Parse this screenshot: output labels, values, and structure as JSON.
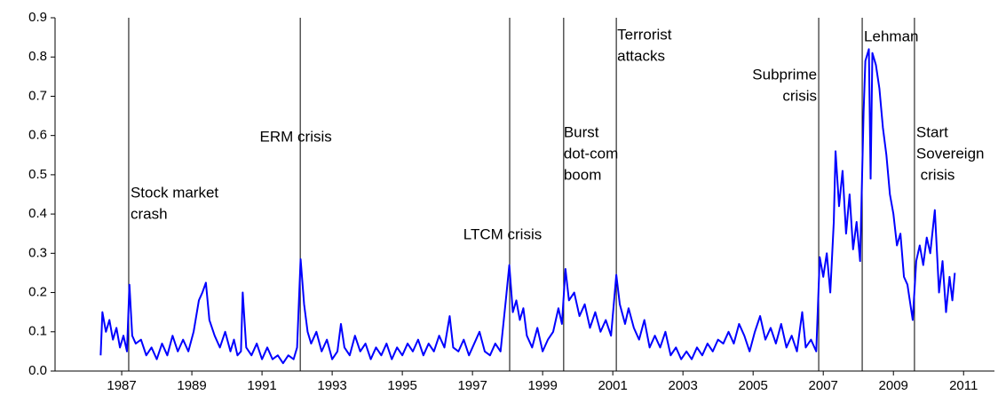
{
  "chart_data": {
    "type": "line",
    "color": "#0000ff",
    "event_color": "#000000",
    "xlim": [
      1985.7,
      2012.48
    ],
    "ylim": [
      0,
      0.9
    ],
    "xticks": [
      {
        "value": 1987.6,
        "label": "1987"
      },
      {
        "value": 1989.6,
        "label": "1989"
      },
      {
        "value": 1991.6,
        "label": "1991"
      },
      {
        "value": 1993.6,
        "label": "1993"
      },
      {
        "value": 1995.6,
        "label": "1995"
      },
      {
        "value": 1997.6,
        "label": "1997"
      },
      {
        "value": 1999.6,
        "label": "1999"
      },
      {
        "value": 2001.6,
        "label": "2001"
      },
      {
        "value": 2003.6,
        "label": "2003"
      },
      {
        "value": 2005.6,
        "label": "2005"
      },
      {
        "value": 2007.6,
        "label": "2007"
      },
      {
        "value": 2009.6,
        "label": "2009"
      },
      {
        "value": 2011.6,
        "label": "2011"
      }
    ],
    "yticks": [
      {
        "value": 0,
        "label": "0.0"
      },
      0.1,
      0.2,
      0.3,
      0.4,
      0.5,
      0.6,
      0.7,
      0.8,
      0.9
    ],
    "events": [
      {
        "x": 1987.8,
        "label": [
          "Stock market",
          "crash"
        ]
      },
      {
        "x": 1992.69,
        "label": [
          "ERM crisis"
        ]
      },
      {
        "x": 1998.66,
        "label": [
          "LTCM crisis"
        ]
      },
      {
        "x": 2000.2,
        "label": [
          "Burst",
          "dot-com",
          "boom"
        ]
      },
      {
        "x": 2001.7,
        "label": [
          "Terrorist",
          "attacks"
        ]
      },
      {
        "x": 2007.47,
        "label": [
          "Subprime",
          "crisis"
        ]
      },
      {
        "x": 2008.71,
        "label": [
          "Lehman"
        ]
      },
      {
        "x": 2010.2,
        "label": [
          "Start",
          "Sovereign",
          " crisis"
        ]
      }
    ],
    "x": [
      1987.0,
      1987.05,
      1987.15,
      1987.25,
      1987.35,
      1987.45,
      1987.55,
      1987.65,
      1987.75,
      1987.82,
      1987.9,
      1988.0,
      1988.15,
      1988.3,
      1988.45,
      1988.6,
      1988.75,
      1988.9,
      1989.05,
      1989.2,
      1989.35,
      1989.5,
      1989.65,
      1989.8,
      1989.9,
      1990.0,
      1990.1,
      1990.25,
      1990.4,
      1990.55,
      1990.7,
      1990.8,
      1990.9,
      1991.0,
      1991.05,
      1991.15,
      1991.3,
      1991.45,
      1991.6,
      1991.75,
      1991.9,
      1992.05,
      1992.2,
      1992.35,
      1992.5,
      1992.6,
      1992.7,
      1992.8,
      1992.9,
      1993.0,
      1993.15,
      1993.3,
      1993.45,
      1993.6,
      1993.75,
      1993.85,
      1993.95,
      1994.1,
      1994.25,
      1994.4,
      1994.55,
      1994.7,
      1994.85,
      1995.0,
      1995.15,
      1995.3,
      1995.45,
      1995.6,
      1995.75,
      1995.9,
      1996.05,
      1996.2,
      1996.35,
      1996.5,
      1996.65,
      1996.8,
      1996.95,
      1997.05,
      1997.2,
      1997.35,
      1997.5,
      1997.65,
      1997.8,
      1997.95,
      1998.1,
      1998.25,
      1998.4,
      1998.55,
      1998.65,
      1998.75,
      1998.85,
      1998.95,
      1999.05,
      1999.15,
      1999.3,
      1999.45,
      1999.6,
      1999.75,
      1999.9,
      2000.05,
      2000.15,
      2000.25,
      2000.35,
      2000.5,
      2000.65,
      2000.8,
      2000.95,
      2001.1,
      2001.25,
      2001.4,
      2001.55,
      2001.7,
      2001.8,
      2001.95,
      2002.05,
      2002.2,
      2002.35,
      2002.5,
      2002.65,
      2002.8,
      2002.95,
      2003.1,
      2003.25,
      2003.4,
      2003.55,
      2003.7,
      2003.85,
      2004.0,
      2004.15,
      2004.3,
      2004.45,
      2004.6,
      2004.75,
      2004.9,
      2005.05,
      2005.2,
      2005.35,
      2005.5,
      2005.65,
      2005.8,
      2005.95,
      2006.1,
      2006.25,
      2006.4,
      2006.55,
      2006.7,
      2006.85,
      2007.0,
      2007.1,
      2007.25,
      2007.4,
      2007.5,
      2007.6,
      2007.7,
      2007.8,
      2007.9,
      2007.95,
      2008.05,
      2008.15,
      2008.25,
      2008.35,
      2008.45,
      2008.55,
      2008.65,
      2008.75,
      2008.8,
      2008.9,
      2008.95,
      2009.0,
      2009.1,
      2009.2,
      2009.3,
      2009.4,
      2009.5,
      2009.6,
      2009.7,
      2009.8,
      2009.9,
      2010.0,
      2010.1,
      2010.15,
      2010.25,
      2010.35,
      2010.45,
      2010.55,
      2010.65,
      2010.78,
      2010.9,
      2011.0,
      2011.1,
      2011.2,
      2011.28,
      2011.35
    ],
    "values": [
      0.04,
      0.15,
      0.1,
      0.13,
      0.08,
      0.11,
      0.06,
      0.09,
      0.05,
      0.22,
      0.09,
      0.07,
      0.08,
      0.04,
      0.06,
      0.03,
      0.07,
      0.04,
      0.09,
      0.05,
      0.08,
      0.05,
      0.1,
      0.18,
      0.2,
      0.225,
      0.13,
      0.09,
      0.06,
      0.1,
      0.05,
      0.08,
      0.04,
      0.05,
      0.2,
      0.06,
      0.04,
      0.07,
      0.03,
      0.06,
      0.03,
      0.04,
      0.02,
      0.04,
      0.03,
      0.06,
      0.285,
      0.17,
      0.1,
      0.07,
      0.1,
      0.05,
      0.08,
      0.03,
      0.05,
      0.12,
      0.06,
      0.04,
      0.09,
      0.05,
      0.07,
      0.03,
      0.06,
      0.04,
      0.07,
      0.03,
      0.06,
      0.04,
      0.07,
      0.05,
      0.08,
      0.04,
      0.07,
      0.05,
      0.09,
      0.06,
      0.14,
      0.06,
      0.05,
      0.08,
      0.04,
      0.07,
      0.1,
      0.05,
      0.04,
      0.07,
      0.05,
      0.18,
      0.27,
      0.15,
      0.18,
      0.13,
      0.16,
      0.09,
      0.06,
      0.11,
      0.05,
      0.08,
      0.1,
      0.16,
      0.12,
      0.26,
      0.18,
      0.2,
      0.14,
      0.17,
      0.11,
      0.15,
      0.1,
      0.13,
      0.09,
      0.245,
      0.17,
      0.12,
      0.16,
      0.11,
      0.08,
      0.13,
      0.06,
      0.09,
      0.06,
      0.1,
      0.04,
      0.06,
      0.03,
      0.05,
      0.03,
      0.06,
      0.04,
      0.07,
      0.05,
      0.08,
      0.07,
      0.1,
      0.07,
      0.12,
      0.09,
      0.05,
      0.1,
      0.14,
      0.08,
      0.11,
      0.07,
      0.12,
      0.06,
      0.09,
      0.05,
      0.15,
      0.06,
      0.08,
      0.05,
      0.29,
      0.24,
      0.3,
      0.2,
      0.38,
      0.56,
      0.42,
      0.51,
      0.35,
      0.45,
      0.31,
      0.38,
      0.28,
      0.66,
      0.79,
      0.82,
      0.49,
      0.81,
      0.78,
      0.72,
      0.62,
      0.55,
      0.45,
      0.4,
      0.32,
      0.35,
      0.24,
      0.22,
      0.16,
      0.13,
      0.28,
      0.32,
      0.27,
      0.34,
      0.3,
      0.41,
      0.2,
      0.28,
      0.15,
      0.24,
      0.18,
      0.25
    ]
  }
}
